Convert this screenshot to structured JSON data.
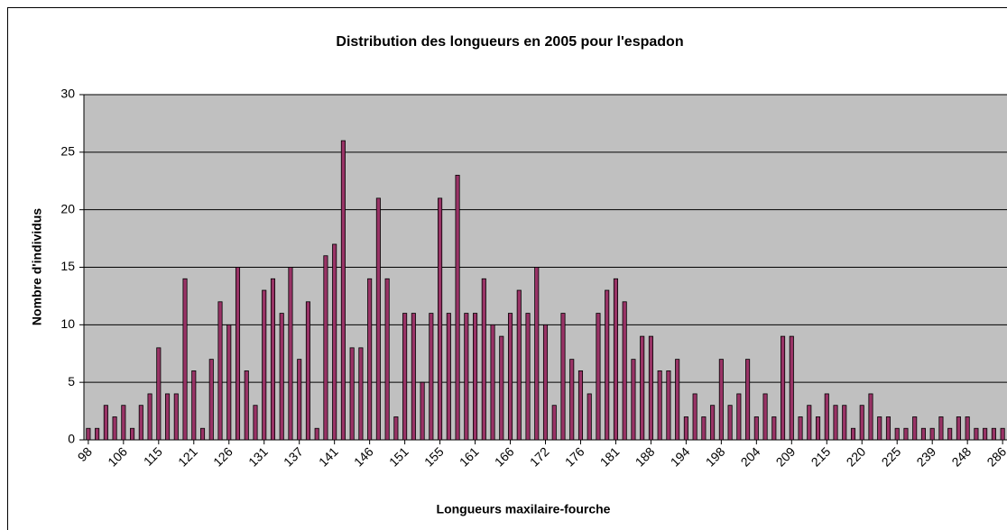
{
  "chart_data": {
    "type": "bar",
    "title": "Distribution des longueurs en 2005 pour l'espadon",
    "x_label": "Longueurs maxilaire-fourche",
    "y_label": "Nombre d'individus",
    "categories": [
      "98",
      null,
      null,
      null,
      "106",
      null,
      null,
      null,
      "115",
      null,
      null,
      null,
      "121",
      null,
      null,
      null,
      "126",
      null,
      null,
      null,
      "131",
      null,
      null,
      null,
      "137",
      null,
      null,
      null,
      "141",
      null,
      null,
      null,
      "146",
      null,
      null,
      null,
      "151",
      null,
      null,
      null,
      "155",
      null,
      null,
      null,
      "161",
      null,
      null,
      null,
      "166",
      null,
      null,
      null,
      "172",
      null,
      null,
      null,
      "176",
      null,
      null,
      null,
      "181",
      null,
      null,
      null,
      "188",
      null,
      null,
      null,
      "194",
      null,
      null,
      null,
      "198",
      null,
      null,
      null,
      "204",
      null,
      null,
      null,
      "209",
      null,
      null,
      null,
      "215",
      null,
      null,
      null,
      "220",
      null,
      null,
      null,
      "225",
      null,
      null,
      null,
      "239",
      null,
      null,
      null,
      "248",
      null,
      null,
      null,
      "286"
    ],
    "values": [
      1,
      1,
      3,
      2,
      3,
      1,
      3,
      4,
      8,
      4,
      4,
      14,
      6,
      1,
      7,
      12,
      10,
      15,
      6,
      3,
      13,
      14,
      11,
      15,
      7,
      12,
      1,
      16,
      17,
      26,
      8,
      8,
      14,
      21,
      14,
      2,
      11,
      11,
      5,
      11,
      21,
      11,
      23,
      11,
      11,
      14,
      10,
      9,
      11,
      13,
      11,
      15,
      10,
      3,
      11,
      7,
      6,
      4,
      11,
      13,
      14,
      12,
      7,
      9,
      9,
      6,
      6,
      7,
      2,
      4,
      2,
      3,
      7,
      3,
      4,
      7,
      2,
      4,
      2,
      9,
      9,
      2,
      3,
      2,
      4,
      3,
      3,
      1,
      3,
      4,
      2,
      2,
      1,
      1,
      2,
      1,
      1,
      2,
      1,
      2,
      2,
      1,
      1,
      1,
      1
    ],
    "color": "#993366",
    "ylim": [
      0,
      30
    ],
    "yticks": [
      0,
      5,
      10,
      15,
      20,
      25,
      30
    ],
    "grid": true
  }
}
